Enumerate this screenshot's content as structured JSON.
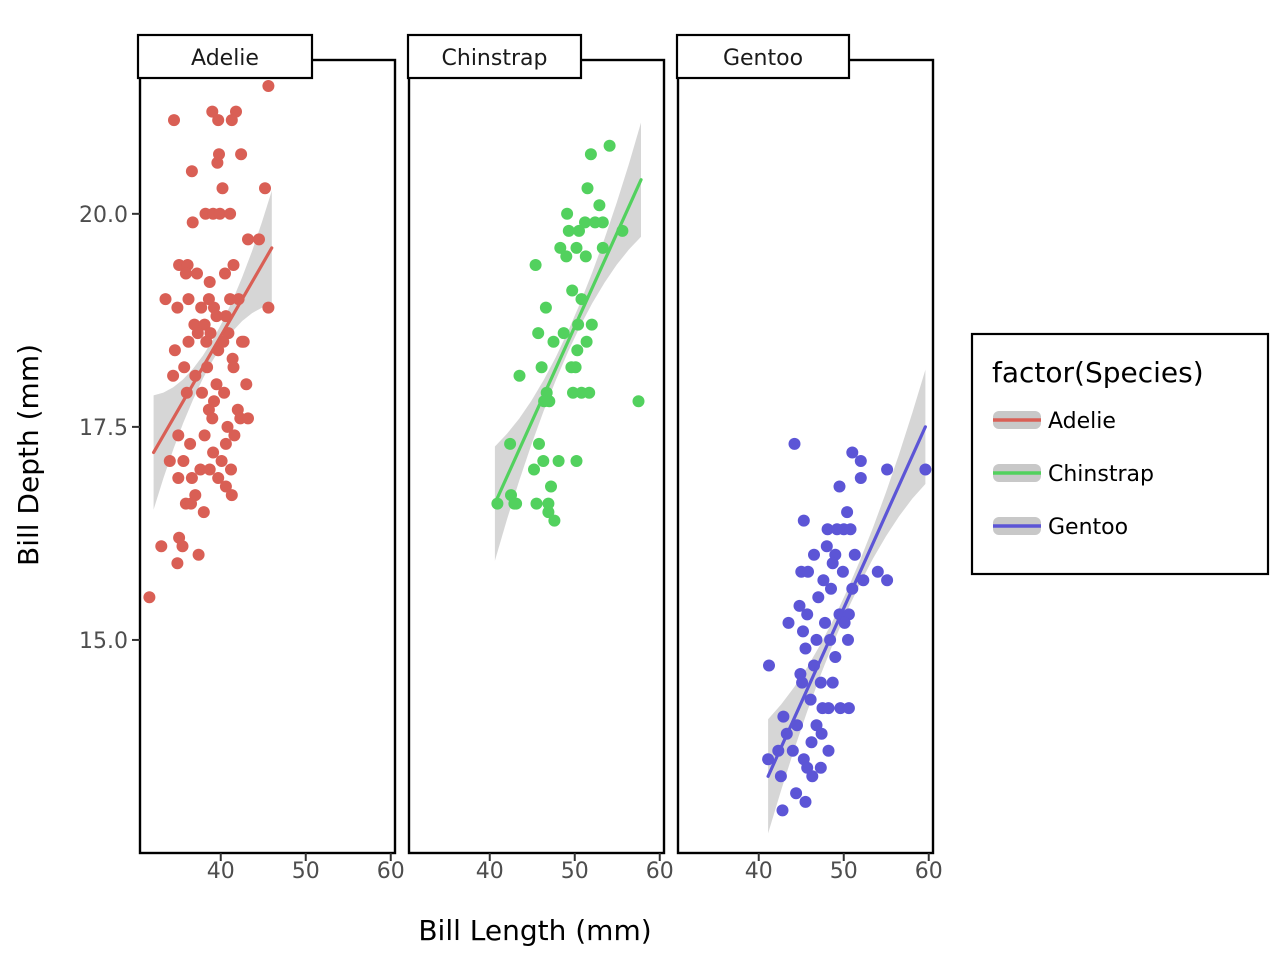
{
  "chart_data": {
    "type": "scatter",
    "xlabel": "Bill Length (mm)",
    "ylabel": "Bill Depth (mm)",
    "xlim": [
      30,
      60
    ],
    "ylim": [
      12.5,
      21.5
    ],
    "x_ticks": [
      40,
      50,
      60
    ],
    "x_tick_labels": [
      "40",
      "50",
      "60"
    ],
    "y_ticks": [
      15,
      17.5,
      20
    ],
    "y_tick_labels": [
      "15.0",
      "17.5",
      "20.0"
    ],
    "grid": false,
    "facet_by": "Species",
    "legend": {
      "title": "factor(Species)",
      "position": "right",
      "entries": [
        "Adelie",
        "Chinstrap",
        "Gentoo"
      ]
    },
    "smoother": "linear fit with grey confidence band",
    "colors": {
      "Adelie": "#d95f55",
      "Chinstrap": "#52d15e",
      "Gentoo": "#5c55d6",
      "band": "#c8c8c8"
    },
    "panels": [
      {
        "name": "Adelie",
        "fit": {
          "x": [
            32.1,
            46.0
          ],
          "y": [
            17.2,
            19.6
          ]
        },
        "points": [
          [
            39,
            21.2
          ],
          [
            34.5,
            21.1
          ],
          [
            39.7,
            21.1
          ],
          [
            41.8,
            21.2
          ],
          [
            41.3,
            21.1
          ],
          [
            45.6,
            21.5
          ],
          [
            39.6,
            20.6
          ],
          [
            39.8,
            20.7
          ],
          [
            42.4,
            20.7
          ],
          [
            36.6,
            20.5
          ],
          [
            40.2,
            20.3
          ],
          [
            45.2,
            20.3
          ],
          [
            36.7,
            19.9
          ],
          [
            38.2,
            20.0
          ],
          [
            39.1,
            20.0
          ],
          [
            39.9,
            20.0
          ],
          [
            41.1,
            20.0
          ],
          [
            33.5,
            19.0
          ],
          [
            35.1,
            19.4
          ],
          [
            36.1,
            19.4
          ],
          [
            35.9,
            19.3
          ],
          [
            37.2,
            19.3
          ],
          [
            38.7,
            19.2
          ],
          [
            40.5,
            19.3
          ],
          [
            41.5,
            19.4
          ],
          [
            43.2,
            19.7
          ],
          [
            44.5,
            19.7
          ],
          [
            34.9,
            18.9
          ],
          [
            36.2,
            19.0
          ],
          [
            37.7,
            18.9
          ],
          [
            38.6,
            19.0
          ],
          [
            39.2,
            18.9
          ],
          [
            40.6,
            18.8
          ],
          [
            41.1,
            19.0
          ],
          [
            42.1,
            19.0
          ],
          [
            45.6,
            18.9
          ],
          [
            36.9,
            18.7
          ],
          [
            38.1,
            18.7
          ],
          [
            38.8,
            18.6
          ],
          [
            39.5,
            18.8
          ],
          [
            40.9,
            18.6
          ],
          [
            42.5,
            18.5
          ],
          [
            34.6,
            18.4
          ],
          [
            36.2,
            18.5
          ],
          [
            37.3,
            18.6
          ],
          [
            38.3,
            18.5
          ],
          [
            39.7,
            18.4
          ],
          [
            40.3,
            18.5
          ],
          [
            41.4,
            18.3
          ],
          [
            42.7,
            18.5
          ],
          [
            35.7,
            18.2
          ],
          [
            37.0,
            18.1
          ],
          [
            38.4,
            18.2
          ],
          [
            39.5,
            18.0
          ],
          [
            41.5,
            18.2
          ],
          [
            43.0,
            18.0
          ],
          [
            34.4,
            18.1
          ],
          [
            36.0,
            17.9
          ],
          [
            37.8,
            17.9
          ],
          [
            39.2,
            17.8
          ],
          [
            40.4,
            17.9
          ],
          [
            42.0,
            17.7
          ],
          [
            38.6,
            17.7
          ],
          [
            39.0,
            17.6
          ],
          [
            40.8,
            17.5
          ],
          [
            42.3,
            17.6
          ],
          [
            43.2,
            17.6
          ],
          [
            35.0,
            17.4
          ],
          [
            36.4,
            17.3
          ],
          [
            38.1,
            17.4
          ],
          [
            39.1,
            17.2
          ],
          [
            40.6,
            17.3
          ],
          [
            41.6,
            17.4
          ],
          [
            34.0,
            17.1
          ],
          [
            35.6,
            17.1
          ],
          [
            37.6,
            17.0
          ],
          [
            38.7,
            17.0
          ],
          [
            40.1,
            17.1
          ],
          [
            41.2,
            17.0
          ],
          [
            35.0,
            16.9
          ],
          [
            36.6,
            16.9
          ],
          [
            39.7,
            16.9
          ],
          [
            37.0,
            16.7
          ],
          [
            41.3,
            16.7
          ],
          [
            35.9,
            16.6
          ],
          [
            36.5,
            16.6
          ],
          [
            38.0,
            16.5
          ],
          [
            40.6,
            16.8
          ],
          [
            35.1,
            16.2
          ],
          [
            35.5,
            16.1
          ],
          [
            33.0,
            16.1
          ],
          [
            37.4,
            16.0
          ],
          [
            34.9,
            15.9
          ],
          [
            31.6,
            15.5
          ]
        ]
      },
      {
        "name": "Chinstrap",
        "fit": {
          "x": [
            40.6,
            57.8
          ],
          "y": [
            16.6,
            20.4
          ]
        },
        "points": [
          [
            54.1,
            20.8
          ],
          [
            51.9,
            20.7
          ],
          [
            51.5,
            20.3
          ],
          [
            52.9,
            20.1
          ],
          [
            49.1,
            20.0
          ],
          [
            51.2,
            19.9
          ],
          [
            52.4,
            19.9
          ],
          [
            53.3,
            19.9
          ],
          [
            49.3,
            19.8
          ],
          [
            50.5,
            19.8
          ],
          [
            48.3,
            19.6
          ],
          [
            49.0,
            19.5
          ],
          [
            50.2,
            19.6
          ],
          [
            51.3,
            19.5
          ],
          [
            53.3,
            19.6
          ],
          [
            55.6,
            19.8
          ],
          [
            45.4,
            19.4
          ],
          [
            49.7,
            19.1
          ],
          [
            50.8,
            19.0
          ],
          [
            46.6,
            18.9
          ],
          [
            50.4,
            18.7
          ],
          [
            52.0,
            18.7
          ],
          [
            45.7,
            18.6
          ],
          [
            47.5,
            18.5
          ],
          [
            48.7,
            18.6
          ],
          [
            51.4,
            18.5
          ],
          [
            50.3,
            18.4
          ],
          [
            49.6,
            18.2
          ],
          [
            46.7,
            17.9
          ],
          [
            50.1,
            18.2
          ],
          [
            46.1,
            18.2
          ],
          [
            51.7,
            17.9
          ],
          [
            49.8,
            17.9
          ],
          [
            47.0,
            17.8
          ],
          [
            50.8,
            17.9
          ],
          [
            43.5,
            18.1
          ],
          [
            46.4,
            17.8
          ],
          [
            57.5,
            17.8
          ],
          [
            45.8,
            17.3
          ],
          [
            46.3,
            17.1
          ],
          [
            45.2,
            17.0
          ],
          [
            48.1,
            17.1
          ],
          [
            50.2,
            17.1
          ],
          [
            42.4,
            17.3
          ],
          [
            47.2,
            16.8
          ],
          [
            42.5,
            16.7
          ],
          [
            42.9,
            16.6
          ],
          [
            45.5,
            16.6
          ],
          [
            46.9,
            16.6
          ],
          [
            46.9,
            16.5
          ],
          [
            47.6,
            16.4
          ],
          [
            40.9,
            16.6
          ],
          [
            43.1,
            16.6
          ]
        ]
      },
      {
        "name": "Gentoo",
        "fit": {
          "x": [
            41.1,
            59.6
          ],
          "y": [
            13.4,
            17.5
          ]
        },
        "points": [
          [
            44.2,
            17.3
          ],
          [
            51.0,
            17.2
          ],
          [
            52.0,
            17.1
          ],
          [
            55.1,
            17.0
          ],
          [
            59.6,
            17.0
          ],
          [
            49.5,
            16.8
          ],
          [
            52.0,
            16.9
          ],
          [
            50.4,
            16.5
          ],
          [
            45.3,
            16.4
          ],
          [
            48.1,
            16.3
          ],
          [
            49.2,
            16.3
          ],
          [
            50.0,
            16.3
          ],
          [
            50.8,
            16.3
          ],
          [
            48.0,
            16.1
          ],
          [
            49.0,
            16.0
          ],
          [
            46.5,
            16.0
          ],
          [
            51.3,
            16.0
          ],
          [
            45.0,
            15.8
          ],
          [
            45.8,
            15.8
          ],
          [
            48.7,
            15.9
          ],
          [
            49.9,
            15.8
          ],
          [
            54.0,
            15.8
          ],
          [
            55.1,
            15.7
          ],
          [
            47.6,
            15.7
          ],
          [
            48.5,
            15.6
          ],
          [
            51.0,
            15.6
          ],
          [
            52.3,
            15.7
          ],
          [
            44.8,
            15.4
          ],
          [
            47.0,
            15.5
          ],
          [
            45.7,
            15.3
          ],
          [
            49.5,
            15.3
          ],
          [
            50.6,
            15.3
          ],
          [
            43.5,
            15.2
          ],
          [
            47.8,
            15.2
          ],
          [
            50.1,
            15.2
          ],
          [
            45.2,
            15.1
          ],
          [
            46.8,
            15.0
          ],
          [
            48.4,
            15.0
          ],
          [
            50.5,
            15.0
          ],
          [
            45.5,
            14.9
          ],
          [
            49.0,
            14.8
          ],
          [
            44.9,
            14.6
          ],
          [
            46.5,
            14.7
          ],
          [
            47.3,
            14.5
          ],
          [
            48.7,
            14.5
          ],
          [
            41.2,
            14.7
          ],
          [
            45.1,
            14.5
          ],
          [
            46.1,
            14.3
          ],
          [
            47.5,
            14.2
          ],
          [
            46.8,
            14.0
          ],
          [
            48.2,
            14.2
          ],
          [
            44.5,
            14.0
          ],
          [
            43.3,
            13.9
          ],
          [
            49.6,
            14.2
          ],
          [
            50.6,
            14.2
          ],
          [
            42.9,
            14.1
          ],
          [
            46.2,
            13.8
          ],
          [
            47.4,
            13.9
          ],
          [
            45.3,
            13.6
          ],
          [
            44.0,
            13.7
          ],
          [
            48.2,
            13.7
          ],
          [
            42.3,
            13.7
          ],
          [
            45.7,
            13.5
          ],
          [
            41.1,
            13.6
          ],
          [
            46.3,
            13.4
          ],
          [
            47.3,
            13.5
          ],
          [
            42.6,
            13.4
          ],
          [
            44.4,
            13.2
          ],
          [
            45.5,
            13.1
          ],
          [
            42.8,
            13.0
          ]
        ]
      }
    ]
  }
}
